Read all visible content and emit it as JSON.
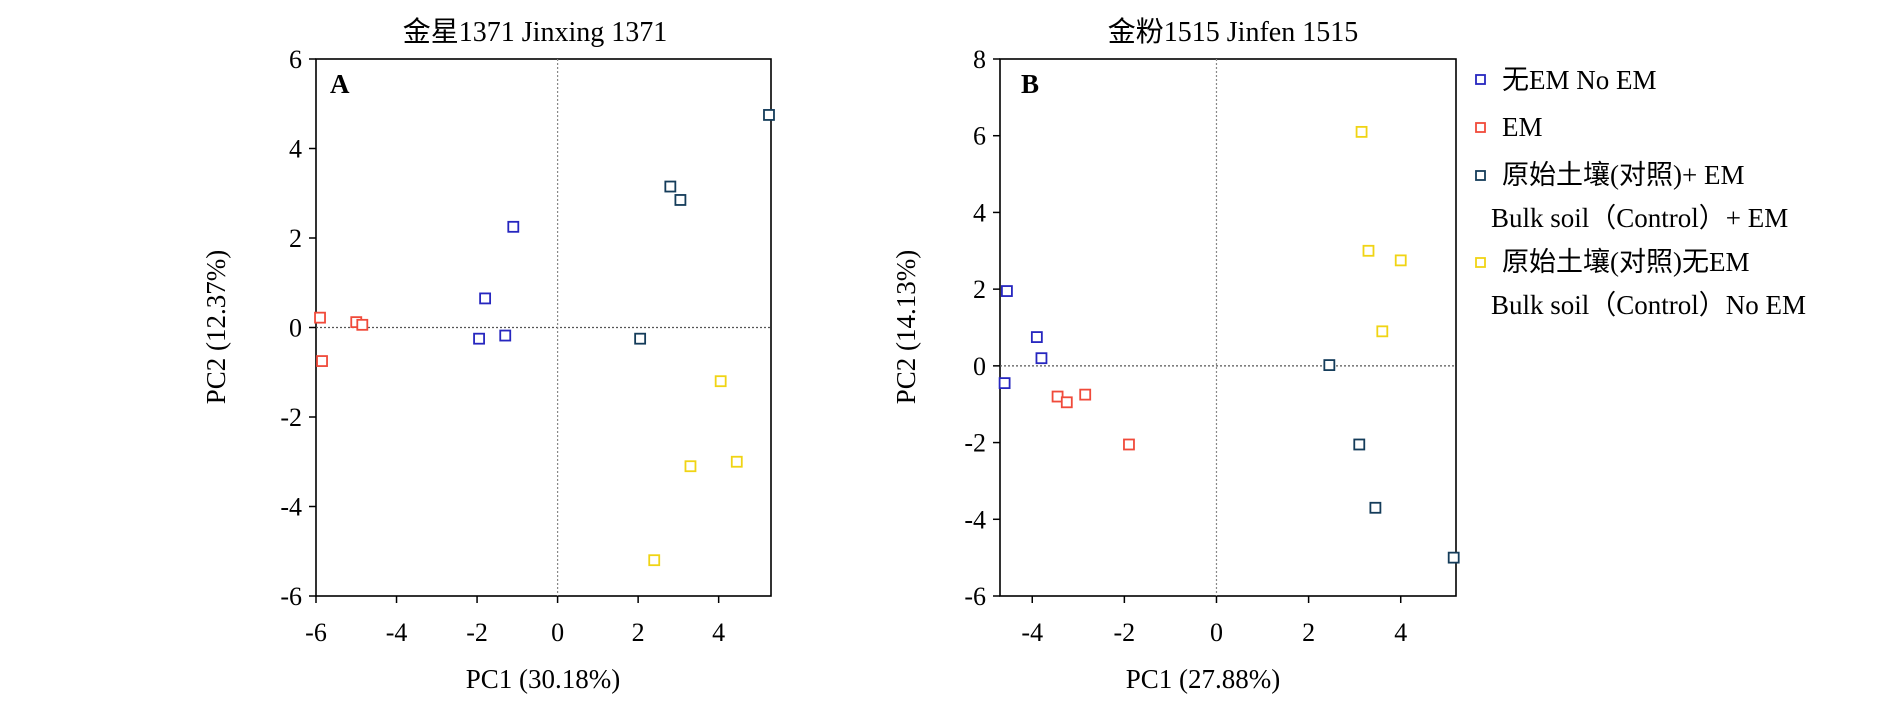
{
  "colors": {
    "no_em": "#2626bf",
    "em": "#f04a3a",
    "bulk_em": "#143c5a",
    "bulk_no_em": "#f0d414"
  },
  "legend": {
    "items": [
      {
        "key": "no_em",
        "lines": [
          "无EM No EM"
        ]
      },
      {
        "key": "em",
        "lines": [
          "EM"
        ]
      },
      {
        "key": "bulk_em",
        "lines": [
          "原始土壤(对照)+ EM",
          "Bulk soil（Control）+ EM"
        ]
      },
      {
        "key": "bulk_no_em",
        "lines": [
          "原始土壤(对照)无EM",
          "Bulk soil（Control）No EM"
        ]
      }
    ]
  },
  "chart_data": [
    {
      "type": "scatter",
      "panel_label": "A",
      "title": "金星1371  Jinxing 1371",
      "xlabel": "PC1 (30.18%)",
      "ylabel": "PC2 (12.37%)",
      "xlim": [
        -6,
        5.3
      ],
      "ylim": [
        -6,
        6
      ],
      "xticks": [
        -6,
        -4,
        -2,
        0,
        2,
        4
      ],
      "yticks": [
        -6,
        -4,
        -2,
        0,
        2,
        4,
        6
      ],
      "grid": false,
      "series": [
        {
          "key": "no_em",
          "points": [
            [
              -1.1,
              2.25
            ],
            [
              -1.8,
              0.65
            ],
            [
              -1.95,
              -0.25
            ],
            [
              -1.3,
              -0.18
            ]
          ]
        },
        {
          "key": "em",
          "points": [
            [
              -5.9,
              0.22
            ],
            [
              -5.0,
              0.12
            ],
            [
              -4.85,
              0.06
            ],
            [
              -5.85,
              -0.75
            ]
          ]
        },
        {
          "key": "bulk_em",
          "points": [
            [
              5.25,
              4.75
            ],
            [
              2.8,
              3.15
            ],
            [
              3.05,
              2.85
            ],
            [
              2.05,
              -0.25
            ]
          ]
        },
        {
          "key": "bulk_no_em",
          "points": [
            [
              4.05,
              -1.2
            ],
            [
              3.3,
              -3.1
            ],
            [
              4.45,
              -3.0
            ],
            [
              2.4,
              -5.2
            ]
          ]
        }
      ]
    },
    {
      "type": "scatter",
      "panel_label": "B",
      "title": "金粉1515  Jinfen 1515",
      "xlabel": "PC1 (27.88%)",
      "ylabel": "PC2 (14.13%)",
      "xlim": [
        -4.7,
        5.2
      ],
      "ylim": [
        -6,
        8
      ],
      "xticks": [
        -4,
        -2,
        0,
        2,
        4
      ],
      "yticks": [
        -6,
        -4,
        -2,
        0,
        2,
        4,
        6,
        8
      ],
      "grid": false,
      "series": [
        {
          "key": "no_em",
          "points": [
            [
              -4.55,
              1.95
            ],
            [
              -3.9,
              0.75
            ],
            [
              -3.8,
              0.2
            ],
            [
              -4.6,
              -0.45
            ]
          ]
        },
        {
          "key": "em",
          "points": [
            [
              -3.45,
              -0.8
            ],
            [
              -3.25,
              -0.95
            ],
            [
              -2.85,
              -0.75
            ],
            [
              -1.9,
              -2.05
            ]
          ]
        },
        {
          "key": "bulk_em",
          "points": [
            [
              2.45,
              0.02
            ],
            [
              3.1,
              -2.05
            ],
            [
              3.45,
              -3.7
            ],
            [
              5.15,
              -5.0
            ]
          ]
        },
        {
          "key": "bulk_no_em",
          "points": [
            [
              3.15,
              6.1
            ],
            [
              3.3,
              3.0
            ],
            [
              4.0,
              2.75
            ],
            [
              3.6,
              0.9
            ]
          ]
        }
      ]
    }
  ]
}
